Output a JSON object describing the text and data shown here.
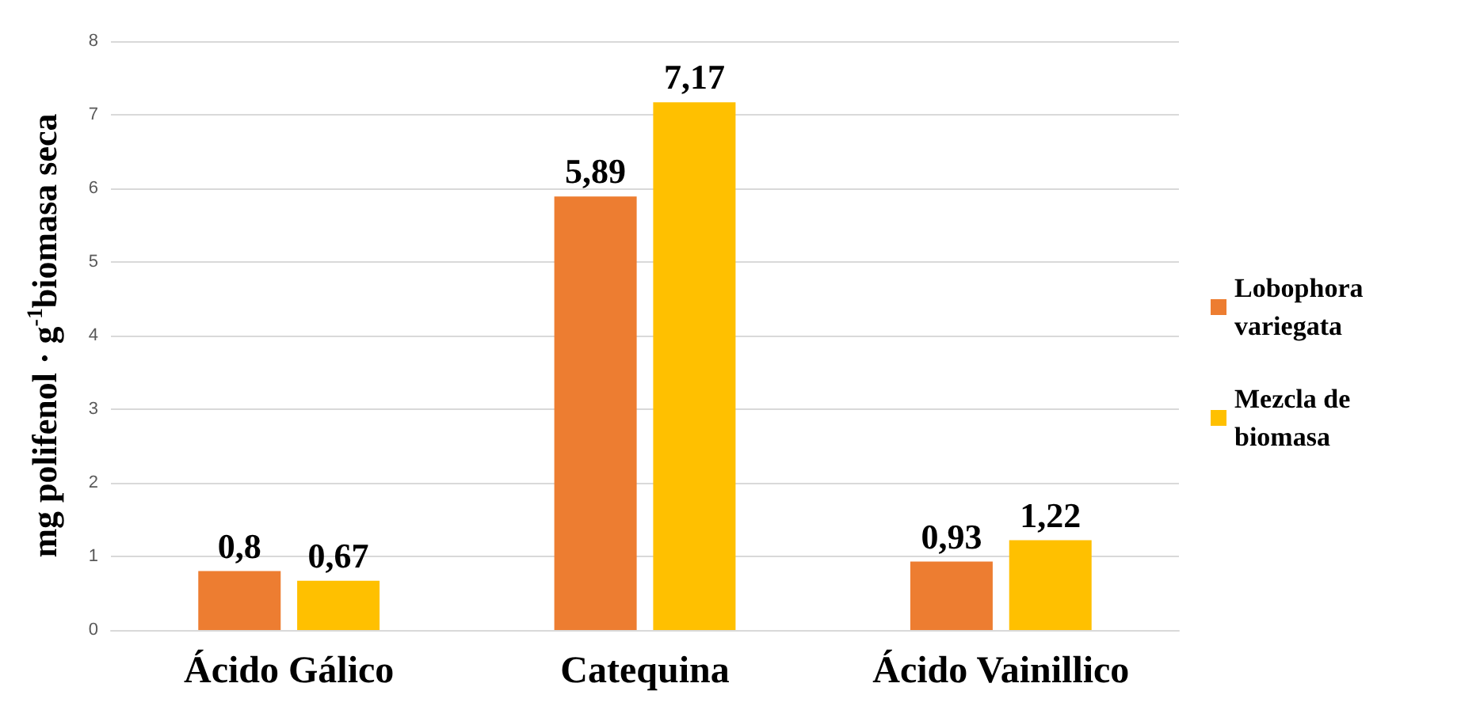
{
  "chart_data": {
    "type": "bar",
    "ylabel": "mg polifenol · g$^{-1}$biomasa seca",
    "categories": [
      "Ácido Gálico",
      "Catequina",
      "Ácido Vainillico"
    ],
    "series": [
      {
        "name": "Lobophora variegata",
        "color": "#ed7d31",
        "values": [
          0.8,
          5.89,
          0.93
        ],
        "value_labels": [
          "0,8",
          "5,89",
          "0,93"
        ]
      },
      {
        "name": "Mezcla de biomasa",
        "color": "#ffc000",
        "values": [
          0.67,
          7.17,
          1.22
        ],
        "value_labels": [
          "0,67",
          "7,17",
          "1,22"
        ]
      }
    ],
    "ylim": [
      0,
      8
    ],
    "yticks": [
      0,
      1,
      2,
      3,
      4,
      5,
      6,
      7,
      8
    ],
    "grid": "y",
    "legend": "right"
  }
}
